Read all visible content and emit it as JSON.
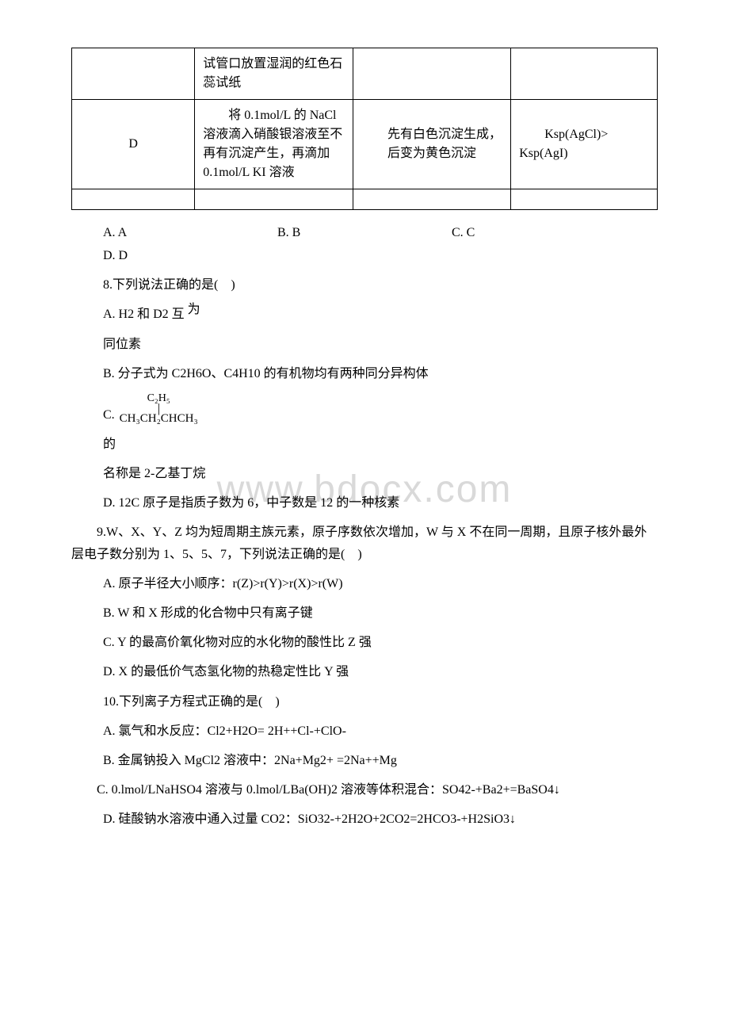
{
  "watermark": "www.bdocx.com",
  "table": {
    "row1": {
      "c2": "试管口放置湿润的红色石蕊试纸"
    },
    "row2": {
      "c1": "D",
      "c2": "　　将 0.1mol/L 的 NaCl 溶液滴入硝酸银溶液至不再有沉淀产生，再滴加 0.1mol/L KI 溶液",
      "c3": "　　先有白色沉淀生成，后变为黄色沉淀",
      "c4": "　　Ksp(AgCl)> Ksp(AgI)"
    }
  },
  "options7": {
    "a": "A. A",
    "b": "B. B",
    "c": "C. C",
    "d": "D. D"
  },
  "q8": {
    "stem": "8.下列说法正确的是(　)",
    "a1": "A. H2 和 D2 互",
    "a1b": "为",
    "a2": "同位素",
    "b": "B. 分子式为 C2H6O、C4H10 的有机物均有两种同分异构体",
    "c_label": "C.",
    "c_top": "C₂H₅",
    "c_bar": "│",
    "c_bot": "CH₃CH₂CHCH₃",
    "c2": "的",
    "c3": "名称是 2-乙基丁烷",
    "d": "D. 12C 原子是指质子数为 6，中子数是 12 的一种核素"
  },
  "q9": {
    "stem": "　　9.W、X、Y、Z 均为短周期主族元素，原子序数依次增加，W 与 X 不在同一周期，且原子核外最外层电子数分别为 1、5、5、7，下列说法正确的是(　)",
    "a": "A. 原子半径大小顺序：r(Z)>r(Y)>r(X)>r(W)",
    "b": "B. W 和 X 形成的化合物中只有离子键",
    "c": "C. Y 的最高价氧化物对应的水化物的酸性比 Z 强",
    "d": "D. X 的最低价气态氢化物的热稳定性比 Y 强"
  },
  "q10": {
    "stem": "10.下列离子方程式正确的是(　)",
    "a": "A. 氯气和水反应：Cl2+H2O= 2H++Cl-+ClO-",
    "b": "B. 金属钠投入 MgCl2 溶液中：2Na+Mg2+ =2Na++Mg",
    "c": "　　C. 0.lmol/LNaHSO4 溶液与 0.lmol/LBa(OH)2 溶液等体积混合：SO42-+Ba2+=BaSO4↓",
    "d": "D. 硅酸钠水溶液中通入过量 CO2：SiO32-+2H2O+2CO2=2HCO3-+H2SiO3↓"
  }
}
